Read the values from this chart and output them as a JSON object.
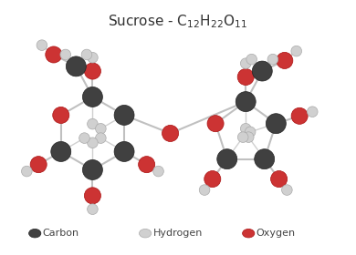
{
  "bg_color": "#ffffff",
  "carbon_color": "#404040",
  "carbon_edge": "#222222",
  "hydrogen_color": "#d0d0d0",
  "hydrogen_edge": "#aaaaaa",
  "oxygen_color": "#cc3333",
  "oxygen_edge": "#aa1111",
  "bond_color": "#c0c0c0",
  "legend_labels": [
    "Carbon",
    "Hydrogen",
    "Oxygen"
  ],
  "carbon_r": 0.17,
  "hydrogen_r": 0.09,
  "oxygen_r": 0.14
}
